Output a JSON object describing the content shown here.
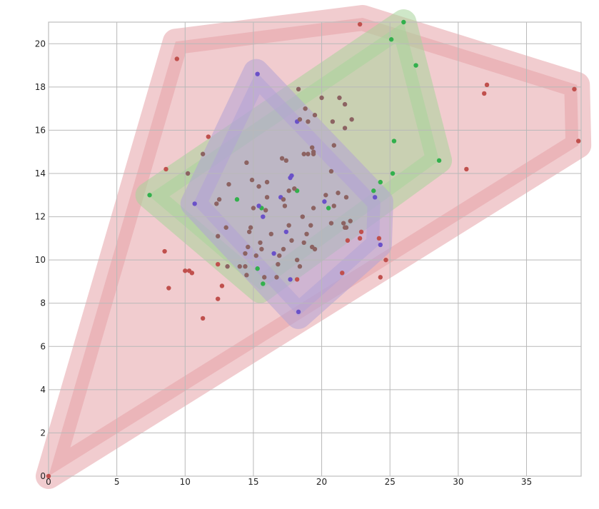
{
  "chart_data": {
    "type": "scatter",
    "title": "",
    "xlabel": "",
    "ylabel": "",
    "xlim": [
      0,
      39
    ],
    "ylim": [
      0,
      21
    ],
    "grid": true,
    "x_ticks": [
      0,
      5,
      10,
      15,
      20,
      25,
      30,
      35
    ],
    "y_ticks": [
      0,
      2,
      4,
      6,
      8,
      10,
      12,
      14,
      16,
      18,
      20
    ],
    "series": [
      {
        "color": "#c0504d",
        "hull_fill": "#e6a3a8",
        "hull": [
          [
            0,
            0
          ],
          [
            9.3,
            20.1
          ],
          [
            23,
            21.2
          ],
          [
            38.7,
            18.1
          ],
          [
            38.8,
            15.3
          ]
        ],
        "points": [
          [
            0,
            0
          ],
          [
            22.8,
            20.9
          ],
          [
            9.4,
            19.3
          ],
          [
            32.1,
            18.1
          ],
          [
            31.9,
            17.7
          ],
          [
            38.5,
            17.9
          ],
          [
            38.8,
            15.5
          ],
          [
            11.7,
            15.7
          ],
          [
            30.6,
            14.2
          ],
          [
            8.6,
            14.2
          ],
          [
            8.5,
            10.4
          ],
          [
            10.0,
            9.5
          ],
          [
            10.3,
            9.5
          ],
          [
            10.5,
            9.4
          ],
          [
            8.8,
            8.7
          ],
          [
            12.7,
            8.8
          ],
          [
            12.4,
            8.2
          ],
          [
            11.3,
            7.3
          ],
          [
            18.2,
            9.1
          ],
          [
            21.5,
            9.4
          ],
          [
            24.3,
            9.2
          ],
          [
            24.7,
            10.0
          ],
          [
            22.9,
            11.3
          ],
          [
            22.8,
            11.0
          ],
          [
            24.2,
            11.0
          ],
          [
            21.9,
            10.9
          ],
          [
            12.4,
            9.8
          ]
        ]
      },
      {
        "color": "#32b04c",
        "hull_fill": "#a8d39a",
        "hull": [
          [
            7.3,
            13.0
          ],
          [
            26.0,
            21.0
          ],
          [
            28.6,
            14.6
          ],
          [
            15.5,
            8.6
          ]
        ],
        "points": [
          [
            26.0,
            21.0
          ],
          [
            28.6,
            14.6
          ],
          [
            7.4,
            13.0
          ],
          [
            13.8,
            12.8
          ],
          [
            18.2,
            13.2
          ],
          [
            23.8,
            13.2
          ],
          [
            24.3,
            13.6
          ],
          [
            15.3,
            9.6
          ],
          [
            15.7,
            8.9
          ],
          [
            15.6,
            12.4
          ],
          [
            20.5,
            12.4
          ],
          [
            25.1,
            20.2
          ],
          [
            26.9,
            19.0
          ],
          [
            25.3,
            15.5
          ],
          [
            25.2,
            14.0
          ]
        ]
      },
      {
        "color": "#6a51c8",
        "hull_fill": "#b3a3d6",
        "hull": [
          [
            15.2,
            18.7
          ],
          [
            24.3,
            12.7
          ],
          [
            24.2,
            10.7
          ],
          [
            18.3,
            7.4
          ],
          [
            10.6,
            12.6
          ]
        ],
        "points": [
          [
            15.3,
            18.6
          ],
          [
            18.2,
            16.4
          ],
          [
            10.7,
            12.6
          ],
          [
            15.4,
            12.5
          ],
          [
            15.7,
            12.0
          ],
          [
            17.0,
            12.9
          ],
          [
            17.7,
            13.8
          ],
          [
            17.4,
            11.3
          ],
          [
            16.5,
            10.3
          ],
          [
            17.7,
            9.1
          ],
          [
            18.3,
            7.6
          ],
          [
            20.2,
            12.7
          ],
          [
            23.9,
            12.9
          ],
          [
            24.3,
            10.7
          ],
          [
            17.8,
            13.9
          ]
        ]
      },
      {
        "color": "#8c6362",
        "hull_fill": "none",
        "hull": [],
        "points": [
          [
            18.3,
            17.9
          ],
          [
            20.0,
            17.5
          ],
          [
            21.3,
            17.5
          ],
          [
            21.7,
            17.2
          ],
          [
            18.8,
            17.0
          ],
          [
            19.5,
            16.7
          ],
          [
            18.4,
            16.5
          ],
          [
            19.0,
            16.4
          ],
          [
            20.8,
            16.4
          ],
          [
            22.2,
            16.5
          ],
          [
            21.7,
            16.1
          ],
          [
            19.3,
            15.2
          ],
          [
            19.4,
            15.0
          ],
          [
            20.9,
            15.3
          ],
          [
            18.7,
            14.9
          ],
          [
            19.0,
            14.9
          ],
          [
            19.4,
            14.9
          ],
          [
            17.1,
            14.7
          ],
          [
            17.4,
            14.6
          ],
          [
            14.5,
            14.5
          ],
          [
            11.3,
            14.9
          ],
          [
            10.2,
            14.0
          ],
          [
            14.9,
            13.7
          ],
          [
            13.2,
            13.5
          ],
          [
            15.4,
            13.4
          ],
          [
            16.0,
            13.6
          ],
          [
            17.6,
            13.2
          ],
          [
            18.0,
            13.3
          ],
          [
            20.7,
            14.1
          ],
          [
            21.2,
            13.1
          ],
          [
            20.3,
            13.0
          ],
          [
            21.8,
            12.9
          ],
          [
            17.2,
            12.8
          ],
          [
            16.0,
            12.9
          ],
          [
            15.9,
            12.3
          ],
          [
            15.0,
            12.4
          ],
          [
            12.5,
            12.8
          ],
          [
            12.3,
            12.6
          ],
          [
            17.3,
            12.5
          ],
          [
            18.6,
            12.0
          ],
          [
            19.4,
            12.4
          ],
          [
            20.9,
            12.5
          ],
          [
            20.7,
            11.7
          ],
          [
            21.6,
            11.7
          ],
          [
            21.7,
            11.5
          ],
          [
            22.1,
            11.8
          ],
          [
            21.8,
            11.5
          ],
          [
            19.2,
            11.6
          ],
          [
            18.9,
            11.2
          ],
          [
            17.6,
            11.6
          ],
          [
            16.3,
            11.2
          ],
          [
            14.8,
            11.5
          ],
          [
            14.7,
            11.3
          ],
          [
            13.0,
            11.5
          ],
          [
            12.4,
            11.1
          ],
          [
            15.5,
            10.8
          ],
          [
            17.8,
            10.9
          ],
          [
            18.7,
            10.8
          ],
          [
            19.3,
            10.6
          ],
          [
            19.5,
            10.5
          ],
          [
            17.2,
            10.5
          ],
          [
            15.6,
            10.5
          ],
          [
            15.2,
            10.2
          ],
          [
            14.6,
            10.6
          ],
          [
            14.4,
            10.3
          ],
          [
            14.0,
            9.7
          ],
          [
            14.4,
            9.7
          ],
          [
            13.1,
            9.7
          ],
          [
            16.9,
            10.2
          ],
          [
            18.2,
            10.0
          ],
          [
            18.4,
            9.7
          ],
          [
            16.8,
            9.8
          ],
          [
            16.7,
            9.2
          ],
          [
            15.8,
            9.2
          ],
          [
            14.5,
            9.3
          ]
        ]
      }
    ]
  }
}
